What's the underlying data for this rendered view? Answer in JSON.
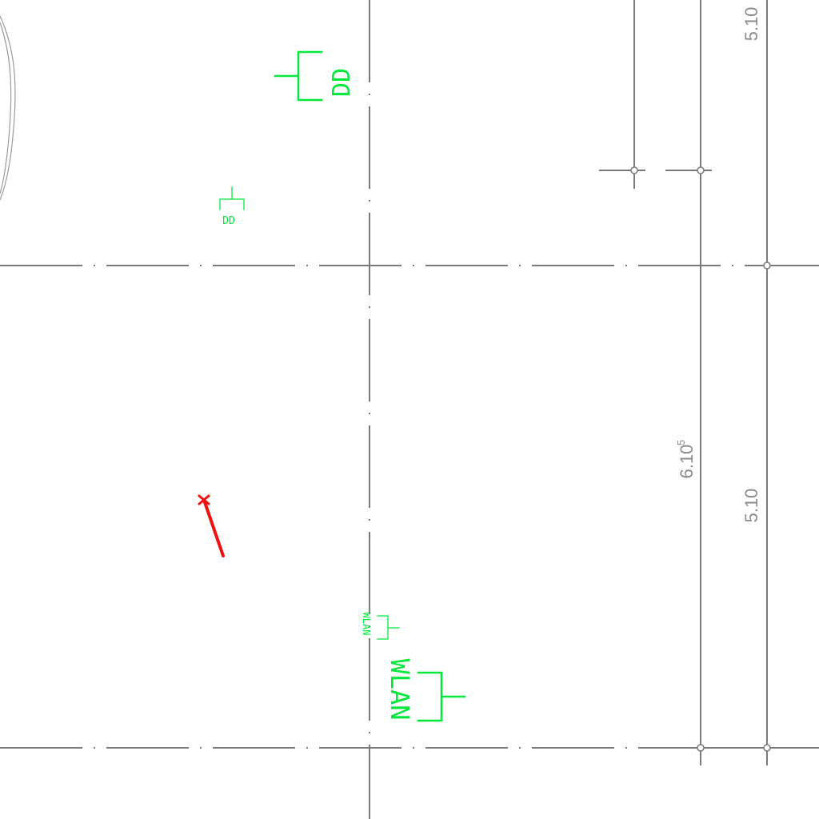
{
  "colors": {
    "background": "#ffffff",
    "axis_lines": "#7a7a7a",
    "dimension_text": "#8a8a8a",
    "symbols": "#00e83a",
    "marker": "#ee1111"
  },
  "symbols": [
    {
      "id": "dd-large",
      "label": "DD"
    },
    {
      "id": "dd-small",
      "label": "DD"
    },
    {
      "id": "wlan-small",
      "label": "WLAN"
    },
    {
      "id": "wlan-large",
      "label": "WLAN"
    }
  ],
  "dimensions": {
    "right_top": "5.10",
    "right_bottom": "5.10",
    "middle": {
      "value": "6.10",
      "superscript": "5"
    }
  },
  "marker": {
    "icon": "red-pen-marker-icon"
  }
}
